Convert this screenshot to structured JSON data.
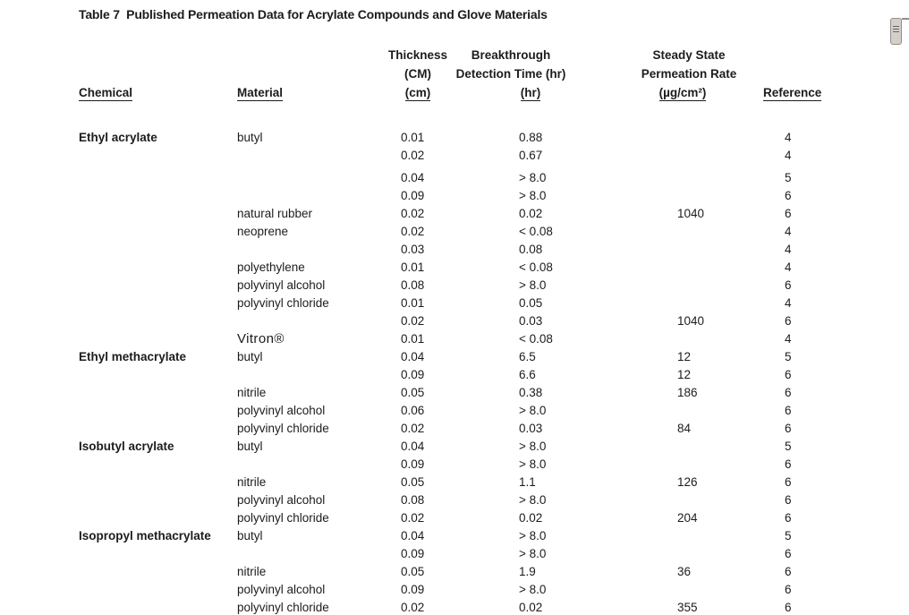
{
  "title": "Table 7  Published Permeation Data for Acrylate Compounds and Glove Materials",
  "colors": {
    "text": "#1c1c1c",
    "background": "#ffffff",
    "scrollbar_fill": "#d4d0c8",
    "scrollbar_border": "#8f8f88",
    "scrollbar_grip": "#62626e"
  },
  "scrollbar": {
    "thumb_icon": "grip-lines"
  },
  "table": {
    "headers": {
      "chemical": "Chemical",
      "material": "Material",
      "thickness": [
        "Thickness",
        "(CM)",
        "(cm)"
      ],
      "breakthrough": [
        "Breakthrough",
        "Detection Time (hr)",
        "(hr)"
      ],
      "steady_state": [
        "Steady State",
        "Permeation Rate",
        "(µg/cm²)"
      ],
      "reference": "Reference"
    },
    "rows": [
      {
        "chemical": "Ethyl acrylate",
        "material": "butyl",
        "thickness": "0.01",
        "breakthrough": "0.88",
        "steady_state": "",
        "reference": "4"
      },
      {
        "chemical": "",
        "material": "",
        "thickness": "0.02",
        "breakthrough": "0.67",
        "steady_state": "",
        "reference": "4"
      },
      {
        "chemical": "",
        "material": "",
        "thickness": "0.04",
        "breakthrough": "> 8.0",
        "steady_state": "",
        "reference": "5",
        "gap_before": true
      },
      {
        "chemical": "",
        "material": "",
        "thickness": "0.09",
        "breakthrough": "> 8.0",
        "steady_state": "",
        "reference": "6"
      },
      {
        "chemical": "",
        "material": "natural rubber",
        "thickness": "0.02",
        "breakthrough": "0.02",
        "steady_state": "1040",
        "reference": "6"
      },
      {
        "chemical": "",
        "material": "neoprene",
        "thickness": "0.02",
        "breakthrough": "< 0.08",
        "steady_state": "",
        "reference": "4"
      },
      {
        "chemical": "",
        "material": "",
        "thickness": "0.03",
        "breakthrough": "0.08",
        "steady_state": "",
        "reference": "4"
      },
      {
        "chemical": "",
        "material": "polyethylene",
        "thickness": "0.01",
        "breakthrough": "< 0.08",
        "steady_state": "",
        "reference": "4"
      },
      {
        "chemical": "",
        "material": "polyvinyl alcohol",
        "thickness": "0.08",
        "breakthrough": "> 8.0",
        "steady_state": "",
        "reference": "6"
      },
      {
        "chemical": "",
        "material": "polyvinyl chloride",
        "thickness": "0.01",
        "breakthrough": "0.05",
        "steady_state": "",
        "reference": "4"
      },
      {
        "chemical": "",
        "material": "",
        "thickness": "0.02",
        "breakthrough": "0.03",
        "steady_state": "1040",
        "reference": "6"
      },
      {
        "chemical": "",
        "material": "Vitron®",
        "material_style": "vitron",
        "thickness": "0.01",
        "breakthrough": "< 0.08",
        "steady_state": "",
        "reference": "4"
      },
      {
        "chemical": "Ethyl methacrylate",
        "material": "butyl",
        "thickness": "0.04",
        "breakthrough": "6.5",
        "steady_state": "12",
        "reference": "5"
      },
      {
        "chemical": "",
        "material": "",
        "thickness": "0.09",
        "breakthrough": "6.6",
        "steady_state": "12",
        "reference": "6"
      },
      {
        "chemical": "",
        "material": "nitrile",
        "thickness": "0.05",
        "breakthrough": "0.38",
        "steady_state": "186",
        "reference": "6"
      },
      {
        "chemical": "",
        "material": "polyvinyl alcohol",
        "thickness": "0.06",
        "breakthrough": "> 8.0",
        "steady_state": "",
        "reference": "6"
      },
      {
        "chemical": "",
        "material": "polyvinyl chloride",
        "thickness": "0.02",
        "breakthrough": "0.03",
        "steady_state": "84",
        "reference": "6"
      },
      {
        "chemical": "Isobutyl acrylate",
        "material": "butyl",
        "thickness": "0.04",
        "breakthrough": "> 8.0",
        "steady_state": "",
        "reference": "5"
      },
      {
        "chemical": "",
        "material": "",
        "thickness": "0.09",
        "breakthrough": "> 8.0",
        "steady_state": "",
        "reference": "6"
      },
      {
        "chemical": "",
        "material": "nitrile",
        "thickness": "0.05",
        "breakthrough": "1.1",
        "steady_state": "126",
        "reference": "6"
      },
      {
        "chemical": "",
        "material": "polyvinyl alcohol",
        "thickness": "0.08",
        "breakthrough": "> 8.0",
        "steady_state": "",
        "reference": "6"
      },
      {
        "chemical": "",
        "material": "polyvinyl chloride",
        "thickness": "0.02",
        "breakthrough": "0.02",
        "steady_state": "204",
        "reference": "6"
      },
      {
        "chemical": "Isopropyl methacrylate",
        "material": "butyl",
        "thickness": "0.04",
        "breakthrough": "> 8.0",
        "steady_state": "",
        "reference": "5"
      },
      {
        "chemical": "",
        "material": "",
        "thickness": "0.09",
        "breakthrough": "> 8.0",
        "steady_state": "",
        "reference": "6"
      },
      {
        "chemical": "",
        "material": "nitrile",
        "thickness": "0.05",
        "breakthrough": "1.9",
        "steady_state": "36",
        "reference": "6"
      },
      {
        "chemical": "",
        "material": "polyvinyl alcohol",
        "thickness": "0.09",
        "breakthrough": "> 8.0",
        "steady_state": "",
        "reference": "6"
      },
      {
        "chemical": "",
        "material": "polyvinyl chloride",
        "thickness": "0.02",
        "breakthrough": "0.02",
        "steady_state": "355",
        "reference": "6"
      }
    ]
  }
}
